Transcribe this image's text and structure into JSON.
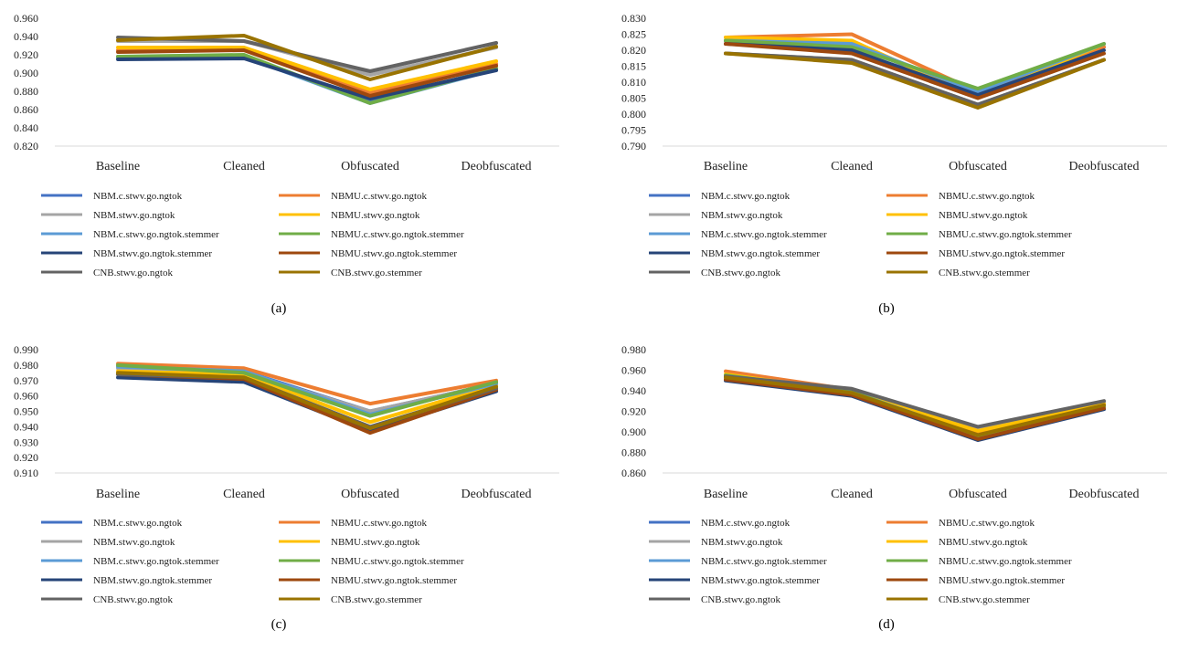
{
  "legend_entries": [
    {
      "name": "NBM.c.stwv.go.ngtok",
      "color": "#4472C4"
    },
    {
      "name": "NBMU.c.stwv.go.ngtok",
      "color": "#ED7D31"
    },
    {
      "name": "NBM.stwv.go.ngtok",
      "color": "#A5A5A5"
    },
    {
      "name": "NBMU.stwv.go.ngtok",
      "color": "#FFC000"
    },
    {
      "name": "NBM.c.stwv.go.ngtok.stemmer",
      "color": "#5B9BD5"
    },
    {
      "name": "NBMU.c.stwv.go.ngtok.stemmer",
      "color": "#70AD47"
    },
    {
      "name": "NBM.stwv.go.ngtok.stemmer",
      "color": "#264478"
    },
    {
      "name": "NBMU.stwv.go.ngtok.stemmer",
      "color": "#9E480E"
    },
    {
      "name": "CNB.stwv.go.ngtok",
      "color": "#636363"
    },
    {
      "name": "CNB.stwv.go.stemmer",
      "color": "#997300"
    }
  ],
  "chart_data": [
    {
      "type": "line",
      "caption": "(a)",
      "categories": [
        "Baseline",
        "Cleaned",
        "Obfuscated",
        "Deobfuscated"
      ],
      "ylim": [
        0.82,
        0.96
      ],
      "yticks": [
        "0.960",
        "0.940",
        "0.920",
        "0.900",
        "0.880",
        "0.860",
        "0.840",
        "0.820"
      ],
      "grid": false,
      "legend_position": "bottom",
      "series": [
        {
          "name": "NBM.c.stwv.go.ngtok",
          "values": [
            0.918,
            0.918,
            0.868,
            0.905
          ]
        },
        {
          "name": "NBMU.c.stwv.go.ngtok",
          "values": [
            0.925,
            0.925,
            0.878,
            0.91
          ]
        },
        {
          "name": "NBM.stwv.go.ngtok",
          "values": [
            0.935,
            0.935,
            0.898,
            0.928
          ]
        },
        {
          "name": "NBMU.stwv.go.ngtok",
          "values": [
            0.928,
            0.928,
            0.882,
            0.913
          ]
        },
        {
          "name": "NBM.c.stwv.go.ngtok.stemmer",
          "values": [
            0.917,
            0.918,
            0.867,
            0.904
          ]
        },
        {
          "name": "NBMU.c.stwv.go.ngtok.stemmer",
          "values": [
            0.918,
            0.92,
            0.867,
            0.905
          ]
        },
        {
          "name": "NBM.stwv.go.ngtok.stemmer",
          "values": [
            0.915,
            0.916,
            0.872,
            0.903
          ]
        },
        {
          "name": "NBMU.stwv.go.ngtok.stemmer",
          "values": [
            0.923,
            0.925,
            0.875,
            0.908
          ]
        },
        {
          "name": "CNB.stwv.go.ngtok",
          "values": [
            0.939,
            0.935,
            0.902,
            0.933
          ]
        },
        {
          "name": "CNB.stwv.go.stemmer",
          "values": [
            0.936,
            0.941,
            0.893,
            0.929
          ]
        }
      ]
    },
    {
      "type": "line",
      "caption": "(b)",
      "categories": [
        "Baseline",
        "Cleaned",
        "Obfuscated",
        "Deobfuscated"
      ],
      "ylim": [
        0.79,
        0.83
      ],
      "yticks": [
        "0.830",
        "0.825",
        "0.820",
        "0.815",
        "0.810",
        "0.805",
        "0.800",
        "0.795",
        "0.790"
      ],
      "grid": false,
      "legend_position": "bottom",
      "series": [
        {
          "name": "NBM.c.stwv.go.ngtok",
          "values": [
            0.823,
            0.822,
            0.806,
            0.821
          ]
        },
        {
          "name": "NBMU.c.stwv.go.ngtok",
          "values": [
            0.824,
            0.825,
            0.807,
            0.821
          ]
        },
        {
          "name": "NBM.stwv.go.ngtok",
          "values": [
            0.819,
            0.817,
            0.803,
            0.817
          ]
        },
        {
          "name": "NBMU.stwv.go.ngtok",
          "values": [
            0.824,
            0.823,
            0.805,
            0.822
          ]
        },
        {
          "name": "NBM.c.stwv.go.ngtok.stemmer",
          "values": [
            0.823,
            0.822,
            0.807,
            0.822
          ]
        },
        {
          "name": "NBMU.c.stwv.go.ngtok.stemmer",
          "values": [
            0.823,
            0.821,
            0.808,
            0.822
          ]
        },
        {
          "name": "NBM.stwv.go.ngtok.stemmer",
          "values": [
            0.822,
            0.82,
            0.806,
            0.82
          ]
        },
        {
          "name": "NBMU.stwv.go.ngtok.stemmer",
          "values": [
            0.822,
            0.819,
            0.805,
            0.819
          ]
        },
        {
          "name": "CNB.stwv.go.ngtok",
          "values": [
            0.819,
            0.817,
            0.803,
            0.817
          ]
        },
        {
          "name": "CNB.stwv.go.stemmer",
          "values": [
            0.819,
            0.816,
            0.802,
            0.817
          ]
        }
      ]
    },
    {
      "type": "line",
      "caption": "(c)",
      "categories": [
        "Baseline",
        "Cleaned",
        "Obfuscated",
        "Deobfuscated"
      ],
      "ylim": [
        0.91,
        0.99
      ],
      "yticks": [
        "0.990",
        "0.980",
        "0.970",
        "0.960",
        "0.950",
        "0.940",
        "0.930",
        "0.920",
        "0.910"
      ],
      "grid": false,
      "legend_position": "bottom",
      "series": [
        {
          "name": "NBM.c.stwv.go.ngtok",
          "values": [
            0.979,
            0.976,
            0.95,
            0.968
          ]
        },
        {
          "name": "NBMU.c.stwv.go.ngtok",
          "values": [
            0.981,
            0.978,
            0.955,
            0.97
          ]
        },
        {
          "name": "NBM.stwv.go.ngtok",
          "values": [
            0.978,
            0.975,
            0.95,
            0.968
          ]
        },
        {
          "name": "NBMU.stwv.go.ngtok",
          "values": [
            0.976,
            0.974,
            0.943,
            0.967
          ]
        },
        {
          "name": "NBM.c.stwv.go.ngtok.stemmer",
          "values": [
            0.979,
            0.976,
            0.948,
            0.968
          ]
        },
        {
          "name": "NBMU.c.stwv.go.ngtok.stemmer",
          "values": [
            0.98,
            0.975,
            0.947,
            0.969
          ]
        },
        {
          "name": "NBM.stwv.go.ngtok.stemmer",
          "values": [
            0.972,
            0.969,
            0.937,
            0.963
          ]
        },
        {
          "name": "NBMU.stwv.go.ngtok.stemmer",
          "values": [
            0.974,
            0.971,
            0.936,
            0.964
          ]
        },
        {
          "name": "CNB.stwv.go.ngtok",
          "values": [
            0.974,
            0.972,
            0.94,
            0.965
          ]
        },
        {
          "name": "CNB.stwv.go.stemmer",
          "values": [
            0.975,
            0.972,
            0.939,
            0.966
          ]
        }
      ]
    },
    {
      "type": "line",
      "caption": "(d)",
      "categories": [
        "Baseline",
        "Cleaned",
        "Obfuscated",
        "Deobfuscated"
      ],
      "ylim": [
        0.86,
        0.98
      ],
      "yticks": [
        "0.980",
        "0.960",
        "0.940",
        "0.920",
        "0.900",
        "0.880",
        "0.860"
      ],
      "grid": false,
      "legend_position": "bottom",
      "series": [
        {
          "name": "NBM.c.stwv.go.ngtok",
          "values": [
            0.955,
            0.94,
            0.898,
            0.926
          ]
        },
        {
          "name": "NBMU.c.stwv.go.ngtok",
          "values": [
            0.959,
            0.941,
            0.899,
            0.927
          ]
        },
        {
          "name": "NBM.stwv.go.ngtok",
          "values": [
            0.955,
            0.941,
            0.904,
            0.929
          ]
        },
        {
          "name": "NBMU.stwv.go.ngtok",
          "values": [
            0.956,
            0.939,
            0.901,
            0.927
          ]
        },
        {
          "name": "NBM.c.stwv.go.ngtok.stemmer",
          "values": [
            0.954,
            0.939,
            0.896,
            0.925
          ]
        },
        {
          "name": "NBMU.c.stwv.go.ngtok.stemmer",
          "values": [
            0.955,
            0.939,
            0.895,
            0.925
          ]
        },
        {
          "name": "NBM.stwv.go.ngtok.stemmer",
          "values": [
            0.95,
            0.935,
            0.892,
            0.922
          ]
        },
        {
          "name": "NBMU.stwv.go.ngtok.stemmer",
          "values": [
            0.951,
            0.936,
            0.893,
            0.923
          ]
        },
        {
          "name": "CNB.stwv.go.ngtok",
          "values": [
            0.954,
            0.942,
            0.905,
            0.93
          ]
        },
        {
          "name": "CNB.stwv.go.stemmer",
          "values": [
            0.953,
            0.938,
            0.897,
            0.926
          ]
        }
      ]
    }
  ]
}
